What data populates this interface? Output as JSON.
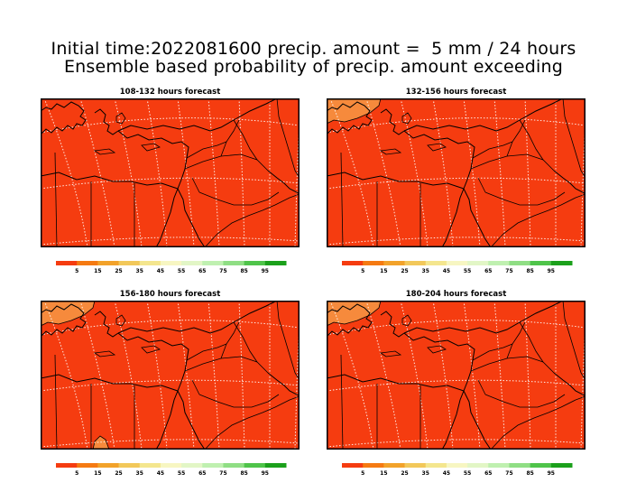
{
  "title": {
    "line1": "Initial time:2022081600 precip. amount =  5 mm / 24 hours",
    "line2": "Ensemble based probability of precip. amount exceeding"
  },
  "panels": [
    {
      "label": "108-132 hours forecast",
      "pale_patches": []
    },
    {
      "label": "132-156 hours forecast",
      "pale_patches": [
        "northwest-corner"
      ]
    },
    {
      "label": "156-180 hours forecast",
      "pale_patches": [
        "northwest-corner",
        "bottom-south"
      ]
    },
    {
      "label": "180-204 hours forecast",
      "pale_patches": [
        "northwest-corner"
      ]
    }
  ],
  "colorbar": {
    "colors": [
      "#f53c10",
      "#f57a12",
      "#f2a22a",
      "#f2c85a",
      "#f4e68e",
      "#f7f6c2",
      "#e2f6c6",
      "#bff0b0",
      "#8fde84",
      "#4fc44a",
      "#1ba01b"
    ],
    "tick_labels": [
      "5",
      "15",
      "25",
      "35",
      "45",
      "55",
      "65",
      "75",
      "85",
      "95"
    ]
  },
  "colors": {
    "field": "#f53c10",
    "pale": "#f68a3c",
    "lines": "#000000",
    "grid": "#ffffff"
  }
}
